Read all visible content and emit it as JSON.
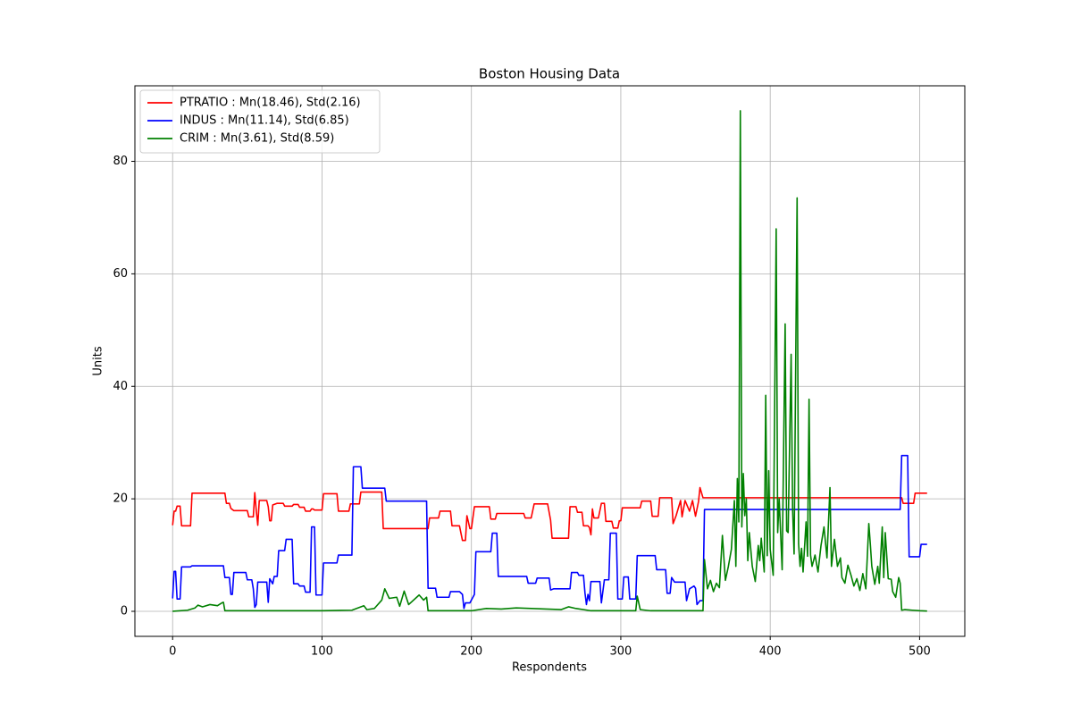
{
  "chart_data": {
    "type": "line",
    "title": "Boston Housing Data",
    "xlabel": "Respondents",
    "ylabel": "Units",
    "xlim": [
      -25.25,
      530.25
    ],
    "ylim": [
      -4.45,
      93.43
    ],
    "xticks": [
      0,
      100,
      200,
      300,
      400,
      500
    ],
    "yticks": [
      0,
      20,
      40,
      60,
      80
    ],
    "grid": true,
    "legend": "upper left",
    "series": [
      {
        "name": "PTRATIO : Mn(18.46), Std(2.16)",
        "color": "#ff0000",
        "x": [
          0,
          1,
          2,
          3,
          5,
          6,
          12,
          13,
          35,
          36,
          38,
          39,
          41,
          50,
          51,
          54,
          55,
          56,
          57,
          58,
          63,
          64,
          65,
          66,
          67,
          70,
          74,
          75,
          80,
          81,
          84,
          85,
          88,
          89,
          92,
          93,
          94,
          95,
          100,
          101,
          110,
          111,
          118,
          119,
          125,
          126,
          140,
          141,
          171,
          172,
          178,
          179,
          186,
          187,
          192,
          194,
          196,
          197,
          199,
          200,
          202,
          212,
          213,
          216,
          217,
          235,
          236,
          240,
          242,
          251,
          253,
          254,
          265,
          266,
          270,
          271,
          274,
          275,
          278,
          279,
          280,
          281,
          282,
          285,
          287,
          289,
          290,
          294,
          295,
          298,
          299,
          300,
          301,
          313,
          314,
          320,
          321,
          325,
          326,
          334,
          335,
          337,
          340,
          341,
          343,
          346,
          348,
          350,
          352,
          353,
          355,
          488,
          489,
          496,
          497,
          505
        ],
        "values": [
          15.3,
          17.8,
          17.8,
          18.7,
          18.7,
          15.2,
          15.2,
          21,
          21,
          19.2,
          19.2,
          18.3,
          17.9,
          17.9,
          16.8,
          16.8,
          21.1,
          17.9,
          15.3,
          19.7,
          19.7,
          18.6,
          16.1,
          16.1,
          18.9,
          19.2,
          19.2,
          18.7,
          18.7,
          19,
          19,
          18.5,
          18.5,
          17.8,
          17.8,
          18.2,
          18.2,
          18,
          18,
          20.9,
          20.9,
          17.8,
          17.8,
          19.1,
          19.1,
          21.2,
          21.2,
          14.7,
          14.7,
          16.6,
          16.6,
          17.8,
          17.8,
          15.2,
          15.2,
          12.6,
          12.6,
          17,
          14.7,
          14.7,
          18.6,
          18.6,
          16.4,
          16.4,
          17.4,
          17.4,
          16.6,
          16.6,
          19.1,
          19.1,
          16.2,
          13,
          13,
          18.6,
          18.6,
          17.6,
          17.6,
          15.2,
          15.2,
          14.9,
          13.6,
          18.2,
          16.6,
          16.6,
          19.2,
          19.2,
          16,
          16,
          14.8,
          14.8,
          16.1,
          16.1,
          18.4,
          18.4,
          19.6,
          19.6,
          16.9,
          16.9,
          20.2,
          20.2,
          15.6,
          17,
          19.7,
          16.8,
          19.7,
          17.8,
          19.7,
          16.9,
          19.5,
          22,
          20.2,
          20.2,
          19.2,
          19.2,
          21,
          21
        ]
      },
      {
        "name": "INDUS : Mn(11.14), Std(6.85)",
        "color": "#0000ff",
        "x": [
          0,
          1,
          2,
          3,
          5,
          6,
          12,
          13,
          34,
          35,
          38,
          39,
          40,
          41,
          49,
          50,
          53,
          54,
          55,
          56,
          57,
          63,
          64,
          65,
          67,
          68,
          70,
          71,
          75,
          76,
          80,
          81,
          84,
          85,
          88,
          89,
          92,
          93,
          95,
          96,
          100,
          101,
          110,
          111,
          120,
          121,
          126,
          127,
          142,
          143,
          170,
          171,
          176,
          177,
          185,
          186,
          192,
          194,
          195,
          196,
          199,
          200,
          202,
          203,
          213,
          214,
          217,
          218,
          237,
          238,
          243,
          244,
          252,
          253,
          255,
          266,
          267,
          271,
          272,
          275,
          276,
          277,
          278,
          279,
          280,
          286,
          287,
          289,
          292,
          293,
          297,
          298,
          301,
          302,
          305,
          306,
          310,
          311,
          323,
          324,
          330,
          331,
          333,
          334,
          336,
          343,
          344,
          346,
          349,
          350,
          351,
          353,
          355,
          356,
          487,
          488,
          492,
          493,
          500,
          501,
          505
        ],
        "values": [
          2.3,
          7.1,
          7.1,
          2.2,
          2.2,
          7.9,
          7.9,
          8.1,
          8.1,
          6,
          6,
          3,
          3,
          6.9,
          6.9,
          5.6,
          5.6,
          4,
          0.7,
          1.2,
          5.2,
          5.2,
          1.6,
          5.8,
          4.9,
          6.2,
          6.2,
          10.8,
          10.8,
          12.8,
          12.8,
          4.9,
          4.9,
          4.5,
          4.5,
          3.4,
          3.4,
          15,
          15,
          2.9,
          2.9,
          8.6,
          8.6,
          10,
          10,
          25.7,
          25.7,
          21.9,
          21.9,
          19.6,
          19.6,
          4.1,
          4.1,
          2.5,
          2.5,
          3.5,
          3.5,
          3,
          0.5,
          1.5,
          1.5,
          2,
          3,
          10.6,
          10.6,
          13.9,
          13.9,
          6.2,
          6.2,
          5,
          5,
          5.9,
          5.9,
          3.8,
          4,
          4,
          6.9,
          6.9,
          6.4,
          6.4,
          3.3,
          1.2,
          3,
          1.9,
          5.3,
          5.3,
          1.5,
          5.6,
          5.6,
          13.9,
          13.9,
          2.2,
          2.2,
          6.1,
          6.1,
          2.2,
          2.2,
          9.9,
          9.9,
          7.4,
          7.4,
          3.2,
          3.2,
          6,
          5.2,
          5.2,
          1.9,
          4,
          4.5,
          4.1,
          1.2,
          1.9,
          1.9,
          18.1,
          18.1,
          27.7,
          27.7,
          9.7,
          9.7,
          11.9,
          11.9
        ]
      },
      {
        "name": "CRIM : Mn(3.61), Std(8.59)",
        "color": "#008000",
        "x": [
          0,
          10,
          15,
          17,
          20,
          25,
          30,
          33,
          34,
          35,
          50,
          60,
          80,
          100,
          120,
          128,
          130,
          135,
          140,
          142,
          145,
          150,
          152,
          155,
          158,
          165,
          168,
          170,
          171,
          200,
          210,
          220,
          230,
          260,
          265,
          270,
          280,
          310,
          311,
          313,
          320,
          354,
          355,
          356,
          358,
          360,
          362,
          364,
          366,
          368,
          370,
          372,
          374,
          376,
          377,
          378,
          379,
          380,
          381,
          382,
          383,
          384,
          385,
          386,
          388,
          390,
          392,
          393,
          394,
          396,
          397,
          398,
          399,
          400,
          402,
          404,
          405,
          406,
          408,
          410,
          411,
          412,
          414,
          415,
          416,
          418,
          419,
          420,
          421,
          422,
          424,
          425,
          426,
          427,
          428,
          430,
          432,
          434,
          436,
          438,
          440,
          441,
          443,
          445,
          447,
          448,
          450,
          452,
          454,
          456,
          458,
          460,
          462,
          464,
          466,
          467,
          468,
          470,
          472,
          473,
          475,
          476,
          477,
          479,
          481,
          482,
          484,
          486,
          487,
          488,
          490,
          495,
          500,
          505
        ],
        "values": [
          0.006,
          0.2,
          0.6,
          1.1,
          0.8,
          1.2,
          1,
          1.5,
          1.6,
          0.1,
          0.1,
          0.1,
          0.1,
          0.1,
          0.2,
          1,
          0.3,
          0.5,
          2,
          4,
          2.3,
          2.5,
          0.9,
          3.6,
          1.2,
          2.9,
          2,
          2.5,
          0.1,
          0.1,
          0.5,
          0.4,
          0.6,
          0.3,
          0.8,
          0.5,
          0.1,
          0.1,
          2.7,
          0.3,
          0.1,
          0.1,
          0.1,
          9.2,
          4,
          5.5,
          3.5,
          5,
          4.2,
          13.5,
          5.5,
          8,
          11,
          19.7,
          8,
          23.6,
          15.9,
          89,
          15,
          24.5,
          17,
          20,
          9,
          14,
          8,
          5.3,
          11.7,
          9,
          13,
          7,
          38.4,
          9.9,
          25,
          11,
          6.4,
          68,
          14,
          20,
          7.4,
          51.1,
          14.3,
          14,
          45.7,
          18,
          10.2,
          73.5,
          12,
          8,
          11.2,
          7,
          15.9,
          9.8,
          37.7,
          10,
          8,
          10,
          7,
          11.7,
          15,
          9.5,
          22,
          8,
          12.8,
          8,
          9.5,
          6,
          5,
          8.2,
          6.5,
          4.5,
          5.8,
          3.7,
          6.7,
          4,
          15.6,
          12,
          8,
          4.8,
          8,
          5,
          15,
          6,
          14,
          5.8,
          5.7,
          3.5,
          2.5,
          6,
          5,
          0.2,
          0.3,
          0.2,
          0.1,
          0.05
        ]
      }
    ]
  }
}
